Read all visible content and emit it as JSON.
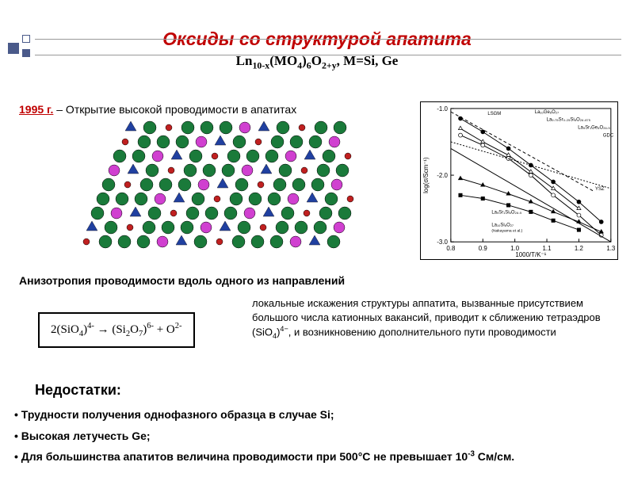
{
  "title": "Оксиды со структурой апатита",
  "subtitle_html": "Ln<sub>10-x</sub>(MO<sub>4</sub>)<sub>6</sub>O<sub>2+y</sub>, M=Si, Ge",
  "discovery": {
    "year": "1995 г.",
    "text": " – Открытие высокой проводимости в апатитах"
  },
  "aniso": "Анизотропия проводимости вдоль одного из направлений",
  "equation_html": "2(SiO<sub>4</sub>)<sup>4-</sup> → (Si<sub>2</sub>O<sub>7</sub>)<sup>6-</sup> + O<sup>2-</sup>",
  "local_text_html": "локальные искажения структуры аппатита, вызванные присутствием большого числа катионных вакансий, приводит к сближению тетраэдров (SiO<sub>4</sub>)<sup>4−</sup>, и возникновению дополнительного пути проводимости",
  "drawbacks_title": "Недостатки:",
  "drawbacks": [
    "Трудности получения однофазного образца в случае Si;",
    "Высокая летучесть Ge;",
    "Для большинства апатитов величина проводимости при 500°C не превышает 10<sup>-3</sup> См/см."
  ],
  "struct": {
    "colors": {
      "green": "#1a7a3a",
      "magenta": "#d040d0",
      "red": "#c02020",
      "blue": "#2040a0",
      "edge": "#888"
    }
  },
  "graph": {
    "xlabel": "1000/T/K⁻¹",
    "ylabel": "log(σ/Scm⁻¹)",
    "xlim": [
      0.8,
      1.3
    ],
    "xticks": [
      0.8,
      0.9,
      1.0,
      1.1,
      1.2,
      1.3
    ],
    "ylim": [
      -3.0,
      -1.0
    ],
    "yticks": [
      -3.0,
      -2.0,
      -1.0
    ],
    "labels": [
      "LSGM",
      "La₁₀Ge₆O₂₇",
      "La₉.₇₅Sr₀.₂₅Si₆O₂₆.₈₇₅",
      "La₉Sr₁Ge₆O₂₆.₅",
      "GDC",
      "YSZ",
      "La₉Sr₁Si₆O₂₆.₅",
      "La₁₀Si₆O₂₇ (Nakayama et al.)"
    ],
    "series": [
      {
        "marker": "none",
        "dash": "4,3",
        "pts": [
          [
            0.8,
            -1.05
          ],
          [
            1.25,
            -2.25
          ]
        ],
        "color": "#000"
      },
      {
        "marker": "circle",
        "fill": "#000",
        "pts": [
          [
            0.83,
            -1.15
          ],
          [
            0.9,
            -1.35
          ],
          [
            0.98,
            -1.6
          ],
          [
            1.05,
            -1.85
          ],
          [
            1.12,
            -2.1
          ],
          [
            1.2,
            -2.4
          ],
          [
            1.27,
            -2.7
          ]
        ],
        "color": "#000"
      },
      {
        "marker": "triangle",
        "fill": "#fff",
        "pts": [
          [
            0.83,
            -1.3
          ],
          [
            0.9,
            -1.5
          ],
          [
            0.98,
            -1.7
          ],
          [
            1.05,
            -1.95
          ],
          [
            1.12,
            -2.2
          ],
          [
            1.2,
            -2.5
          ]
        ],
        "color": "#000"
      },
      {
        "marker": "circle",
        "fill": "#fff",
        "pts": [
          [
            0.83,
            -1.4
          ],
          [
            0.9,
            -1.55
          ],
          [
            0.98,
            -1.75
          ],
          [
            1.05,
            -2.0
          ],
          [
            1.12,
            -2.3
          ],
          [
            1.2,
            -2.6
          ],
          [
            1.27,
            -2.9
          ]
        ],
        "color": "#000"
      },
      {
        "marker": "none",
        "dash": "2,2",
        "pts": [
          [
            0.8,
            -1.5
          ],
          [
            1.3,
            -2.2
          ]
        ],
        "color": "#000"
      },
      {
        "marker": "triangle",
        "fill": "#000",
        "pts": [
          [
            0.83,
            -2.05
          ],
          [
            0.9,
            -2.15
          ],
          [
            0.98,
            -2.28
          ],
          [
            1.05,
            -2.4
          ],
          [
            1.12,
            -2.55
          ],
          [
            1.2,
            -2.7
          ],
          [
            1.27,
            -2.85
          ]
        ],
        "color": "#000"
      },
      {
        "marker": "square",
        "fill": "#000",
        "pts": [
          [
            0.83,
            -2.3
          ],
          [
            0.9,
            -2.35
          ],
          [
            0.98,
            -2.45
          ],
          [
            1.05,
            -2.55
          ],
          [
            1.12,
            -2.68
          ],
          [
            1.2,
            -2.82
          ]
        ],
        "color": "#000"
      },
      {
        "marker": "none",
        "dash": "none",
        "pts": [
          [
            0.8,
            -1.6
          ],
          [
            1.3,
            -3.0
          ]
        ],
        "color": "#000"
      }
    ]
  }
}
